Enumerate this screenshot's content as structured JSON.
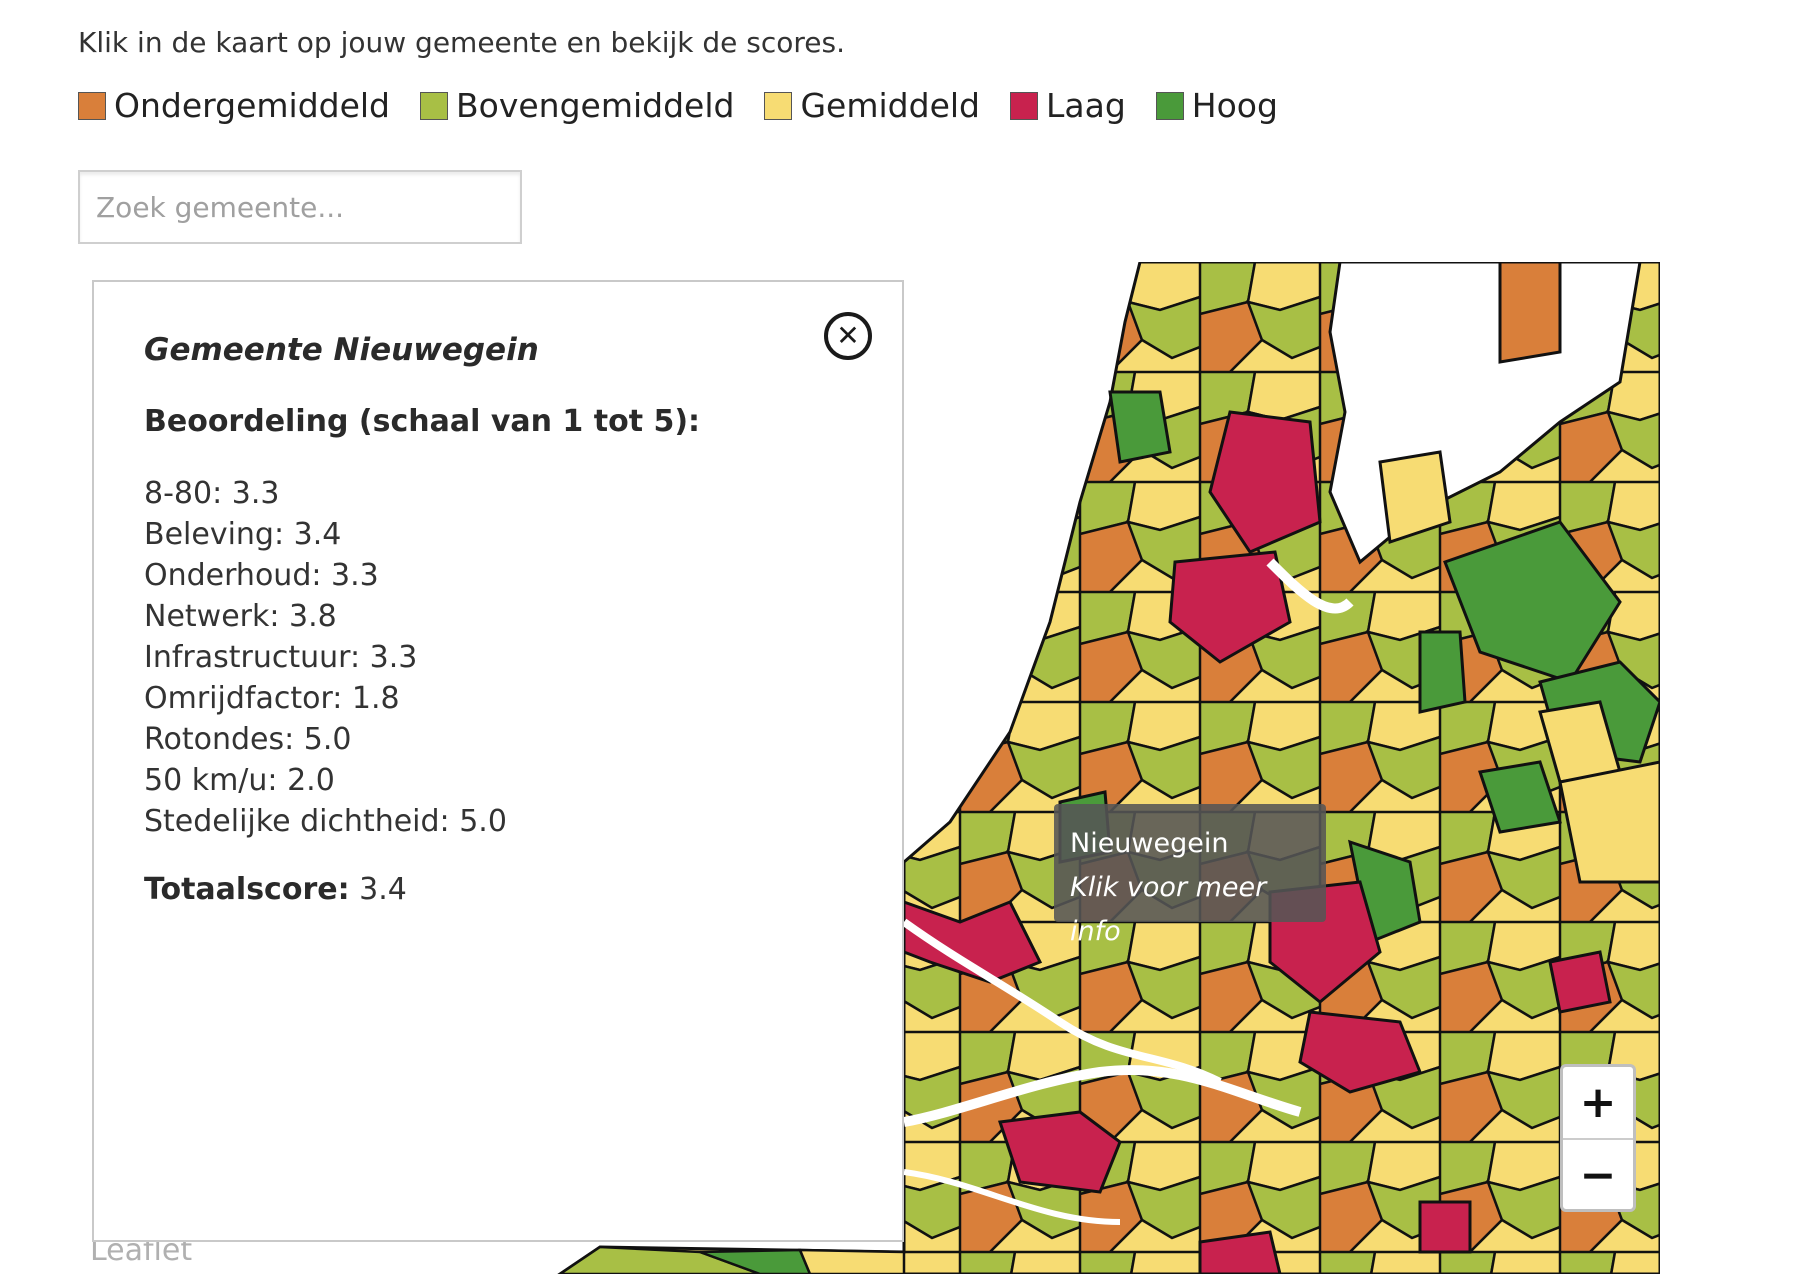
{
  "intro_text": "Klik in de kaart op jouw gemeente en bekijk de scores.",
  "legend": [
    {
      "label": "Ondergemiddeld",
      "color": "#d97f3a"
    },
    {
      "label": "Bovengemiddeld",
      "color": "#a8bf45"
    },
    {
      "label": "Gemiddeld",
      "color": "#f7dc73"
    },
    {
      "label": "Laag",
      "color": "#c8224e"
    },
    {
      "label": "Hoog",
      "color": "#4a9a3a"
    }
  ],
  "search": {
    "placeholder": "Zoek gemeente..."
  },
  "panel": {
    "title": "Gemeente Nieuwegein",
    "subtitle": "Beoordeling (schaal van 1 tot 5):",
    "close_icon": "close-icon",
    "scores": [
      "8-80: 3.3",
      "Beleving: 3.4",
      "Onderhoud: 3.3",
      "Netwerk: 3.8",
      "Infrastructuur: 3.3",
      "Omrijdfactor: 1.8",
      "Rotondes: 5.0",
      "50 km/u: 2.0",
      "Stedelijke dichtheid: 5.0"
    ],
    "total_label": "Totaalscore:",
    "total_value": " 3.4"
  },
  "tooltip": {
    "name": "Nieuwegein",
    "hint": "Klik voor meer info"
  },
  "zoom": {
    "in": "+",
    "out": "−"
  },
  "attribution": "Leaflet"
}
